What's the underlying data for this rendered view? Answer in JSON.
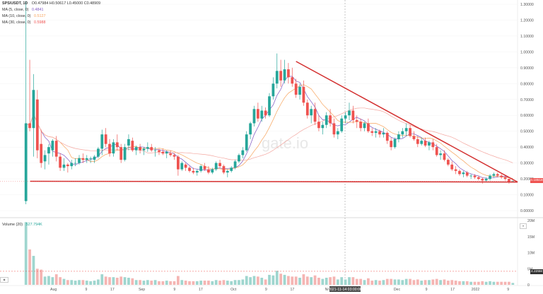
{
  "header": {
    "symbol": "SPS/USDT, 1D",
    "ohlc": "O0.47984 H0.50617 L0.45000 C0.48909",
    "ma_lines": [
      {
        "label": "MA (5, close, 0)",
        "value": "0.4841",
        "color": "#7e57c2"
      },
      {
        "label": "MA (10, close, 0)",
        "value": "0.5127",
        "color": "#f7a35c"
      },
      {
        "label": "MA (30, close, 0)",
        "value": "0.5988",
        "color": "#ef5350"
      }
    ]
  },
  "volume_legend": {
    "label": "Volume (20)",
    "value": "527.794K"
  },
  "price_tag": "0.18518",
  "volume_tag": "4.225M",
  "crosshair_date": "2021-11-14 03:00:00",
  "watermark": "gate.io",
  "colors": {
    "up": "#26a69a",
    "down": "#ef5350",
    "pattern": "#d32f2f",
    "ma5": "#7e57c2",
    "ma10": "#f7a35c",
    "ma30": "#f4a7a0"
  },
  "chart_data": {
    "type": "candlestick",
    "price_axis": {
      "ticks": [
        "1.30000",
        "1.20000",
        "1.10000",
        "1.00000",
        "0.90000",
        "0.80000",
        "0.70000",
        "0.60000",
        "0.50000",
        "0.40000",
        "0.30000",
        "0.20000",
        "0.10000",
        "0.00000"
      ],
      "ylim": [
        0.0,
        1.3
      ]
    },
    "volume_axis": {
      "ticks": [
        "20M",
        "15M",
        "10M",
        "5M",
        "0"
      ],
      "ylim": [
        0,
        20
      ]
    },
    "x_ticks": [
      "Aug",
      "9",
      "17",
      "Sep",
      "9",
      "17",
      "Oct",
      "9",
      "17",
      "Nov",
      "",
      "Dec",
      "9",
      "17",
      "2022",
      "9"
    ],
    "candles": [
      [
        0.06,
        1.32,
        0.04,
        0.55
      ],
      [
        0.55,
        0.95,
        0.5,
        0.52
      ],
      [
        0.52,
        0.86,
        0.34,
        0.76
      ],
      [
        0.7,
        0.76,
        0.33,
        0.38
      ],
      [
        0.42,
        0.51,
        0.27,
        0.3
      ],
      [
        0.31,
        0.38,
        0.26,
        0.35
      ],
      [
        0.36,
        0.42,
        0.29,
        0.4
      ],
      [
        0.38,
        0.45,
        0.34,
        0.44
      ],
      [
        0.44,
        0.47,
        0.31,
        0.34
      ],
      [
        0.34,
        0.36,
        0.25,
        0.27
      ],
      [
        0.27,
        0.33,
        0.25,
        0.29
      ],
      [
        0.29,
        0.3,
        0.24,
        0.28
      ],
      [
        0.28,
        0.32,
        0.26,
        0.3
      ],
      [
        0.3,
        0.33,
        0.28,
        0.3
      ],
      [
        0.3,
        0.35,
        0.29,
        0.33
      ],
      [
        0.33,
        0.36,
        0.3,
        0.32
      ],
      [
        0.32,
        0.35,
        0.3,
        0.33
      ],
      [
        0.33,
        0.34,
        0.3,
        0.33
      ],
      [
        0.32,
        0.35,
        0.3,
        0.34
      ],
      [
        0.34,
        0.4,
        0.33,
        0.39
      ],
      [
        0.39,
        0.51,
        0.35,
        0.48
      ],
      [
        0.48,
        0.52,
        0.4,
        0.42
      ],
      [
        0.42,
        0.45,
        0.34,
        0.36
      ],
      [
        0.36,
        0.45,
        0.34,
        0.43
      ],
      [
        0.43,
        0.48,
        0.38,
        0.4
      ],
      [
        0.4,
        0.42,
        0.3,
        0.32
      ],
      [
        0.32,
        0.42,
        0.31,
        0.4
      ],
      [
        0.41,
        0.48,
        0.38,
        0.45
      ],
      [
        0.44,
        0.46,
        0.37,
        0.38
      ],
      [
        0.38,
        0.41,
        0.35,
        0.4
      ],
      [
        0.4,
        0.42,
        0.36,
        0.38
      ],
      [
        0.38,
        0.4,
        0.35,
        0.39
      ],
      [
        0.39,
        0.43,
        0.37,
        0.4
      ],
      [
        0.4,
        0.42,
        0.37,
        0.38
      ],
      [
        0.38,
        0.4,
        0.34,
        0.38
      ],
      [
        0.38,
        0.39,
        0.35,
        0.37
      ],
      [
        0.37,
        0.39,
        0.35,
        0.36
      ],
      [
        0.36,
        0.38,
        0.33,
        0.37
      ],
      [
        0.36,
        0.38,
        0.34,
        0.35
      ],
      [
        0.35,
        0.36,
        0.32,
        0.34
      ],
      [
        0.34,
        0.35,
        0.22,
        0.26
      ],
      [
        0.26,
        0.31,
        0.25,
        0.3
      ],
      [
        0.29,
        0.3,
        0.25,
        0.27
      ],
      [
        0.27,
        0.28,
        0.24,
        0.25
      ],
      [
        0.25,
        0.27,
        0.23,
        0.24
      ],
      [
        0.24,
        0.26,
        0.22,
        0.25
      ],
      [
        0.25,
        0.29,
        0.24,
        0.28
      ],
      [
        0.28,
        0.3,
        0.25,
        0.26
      ],
      [
        0.26,
        0.28,
        0.23,
        0.24
      ],
      [
        0.24,
        0.27,
        0.23,
        0.26
      ],
      [
        0.26,
        0.31,
        0.25,
        0.3
      ],
      [
        0.3,
        0.32,
        0.27,
        0.28
      ],
      [
        0.28,
        0.29,
        0.23,
        0.24
      ],
      [
        0.24,
        0.26,
        0.21,
        0.25
      ],
      [
        0.25,
        0.28,
        0.24,
        0.27
      ],
      [
        0.27,
        0.32,
        0.26,
        0.31
      ],
      [
        0.31,
        0.36,
        0.3,
        0.35
      ],
      [
        0.35,
        0.4,
        0.33,
        0.38
      ],
      [
        0.38,
        0.5,
        0.37,
        0.48
      ],
      [
        0.48,
        0.56,
        0.45,
        0.55
      ],
      [
        0.55,
        0.66,
        0.53,
        0.64
      ],
      [
        0.64,
        0.68,
        0.56,
        0.58
      ],
      [
        0.58,
        0.66,
        0.56,
        0.63
      ],
      [
        0.63,
        0.65,
        0.58,
        0.6
      ],
      [
        0.6,
        0.74,
        0.59,
        0.72
      ],
      [
        0.72,
        0.84,
        0.7,
        0.8
      ],
      [
        0.8,
        0.99,
        0.77,
        0.88
      ],
      [
        0.88,
        0.95,
        0.78,
        0.82
      ],
      [
        0.82,
        0.95,
        0.8,
        0.89
      ],
      [
        0.89,
        0.93,
        0.8,
        0.84
      ],
      [
        0.84,
        0.9,
        0.78,
        0.8
      ],
      [
        0.8,
        0.83,
        0.71,
        0.73
      ],
      [
        0.73,
        0.8,
        0.7,
        0.78
      ],
      [
        0.78,
        0.82,
        0.66,
        0.68
      ],
      [
        0.68,
        0.7,
        0.58,
        0.6
      ],
      [
        0.6,
        0.66,
        0.55,
        0.64
      ],
      [
        0.64,
        0.68,
        0.54,
        0.56
      ],
      [
        0.56,
        0.6,
        0.5,
        0.52
      ],
      [
        0.52,
        0.56,
        0.48,
        0.54
      ],
      [
        0.54,
        0.62,
        0.52,
        0.6
      ],
      [
        0.6,
        0.64,
        0.53,
        0.55
      ],
      [
        0.55,
        0.58,
        0.46,
        0.48
      ],
      [
        0.48,
        0.52,
        0.45,
        0.5
      ],
      [
        0.5,
        0.6,
        0.49,
        0.58
      ],
      [
        0.58,
        0.62,
        0.55,
        0.6
      ],
      [
        0.6,
        0.68,
        0.57,
        0.63
      ],
      [
        0.63,
        0.66,
        0.55,
        0.57
      ],
      [
        0.57,
        0.6,
        0.52,
        0.56
      ],
      [
        0.56,
        0.58,
        0.5,
        0.52
      ],
      [
        0.52,
        0.56,
        0.5,
        0.55
      ],
      [
        0.55,
        0.58,
        0.49,
        0.5
      ],
      [
        0.5,
        0.52,
        0.47,
        0.49
      ],
      [
        0.49,
        0.52,
        0.46,
        0.5
      ],
      [
        0.5,
        0.51,
        0.46,
        0.48
      ],
      [
        0.48,
        0.52,
        0.46,
        0.49
      ],
      [
        0.49,
        0.5,
        0.42,
        0.44
      ],
      [
        0.44,
        0.46,
        0.38,
        0.4
      ],
      [
        0.4,
        0.46,
        0.39,
        0.45
      ],
      [
        0.45,
        0.5,
        0.43,
        0.48
      ],
      [
        0.48,
        0.52,
        0.46,
        0.5
      ],
      [
        0.5,
        0.55,
        0.47,
        0.52
      ],
      [
        0.52,
        0.54,
        0.46,
        0.47
      ],
      [
        0.47,
        0.5,
        0.44,
        0.45
      ],
      [
        0.45,
        0.47,
        0.4,
        0.42
      ],
      [
        0.42,
        0.46,
        0.41,
        0.44
      ],
      [
        0.44,
        0.46,
        0.4,
        0.41
      ],
      [
        0.41,
        0.44,
        0.38,
        0.43
      ],
      [
        0.43,
        0.45,
        0.38,
        0.4
      ],
      [
        0.4,
        0.42,
        0.34,
        0.35
      ],
      [
        0.35,
        0.38,
        0.32,
        0.36
      ],
      [
        0.36,
        0.38,
        0.31,
        0.32
      ],
      [
        0.32,
        0.33,
        0.28,
        0.29
      ],
      [
        0.29,
        0.31,
        0.25,
        0.26
      ],
      [
        0.26,
        0.28,
        0.23,
        0.25
      ],
      [
        0.25,
        0.26,
        0.22,
        0.23
      ],
      [
        0.23,
        0.25,
        0.21,
        0.24
      ],
      [
        0.24,
        0.25,
        0.21,
        0.22
      ],
      [
        0.22,
        0.23,
        0.2,
        0.22
      ],
      [
        0.22,
        0.23,
        0.2,
        0.21
      ],
      [
        0.21,
        0.22,
        0.19,
        0.2
      ],
      [
        0.2,
        0.21,
        0.17,
        0.19
      ],
      [
        0.19,
        0.21,
        0.18,
        0.2
      ],
      [
        0.2,
        0.23,
        0.19,
        0.22
      ],
      [
        0.22,
        0.24,
        0.21,
        0.23
      ],
      [
        0.23,
        0.24,
        0.21,
        0.22
      ],
      [
        0.22,
        0.23,
        0.2,
        0.21
      ],
      [
        0.21,
        0.22,
        0.19,
        0.2
      ],
      [
        0.2,
        0.2,
        0.17,
        0.18
      ],
      [
        0.18,
        0.19,
        0.18,
        0.185
      ]
    ],
    "pattern": {
      "name": "descending triangle",
      "upper_line": [
        [
          71,
          0.94
        ],
        [
          130,
          0.18
        ]
      ],
      "support_line": [
        [
          0,
          0.185
        ],
        [
          130,
          0.18
        ]
      ]
    }
  }
}
